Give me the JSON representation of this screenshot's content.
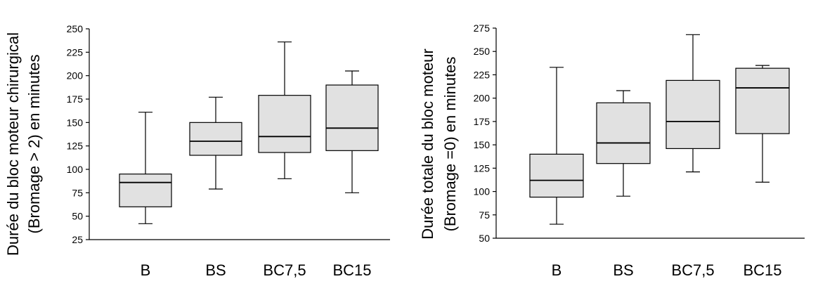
{
  "chart_data": [
    {
      "type": "boxplot",
      "ylabel_line1": "Durée du bloc moteur chirurgical",
      "ylabel_line2": "(Bromage > 2) en minutes",
      "categories": [
        "B",
        "BS",
        "BC7,5",
        "BC15"
      ],
      "ylim": [
        25,
        250
      ],
      "yticks": [
        25,
        50,
        75,
        100,
        125,
        150,
        175,
        200,
        225,
        250
      ],
      "boxes": [
        {
          "min": 42,
          "q1": 60,
          "median": 86,
          "q3": 95,
          "max": 161
        },
        {
          "min": 79,
          "q1": 115,
          "median": 130,
          "q3": 150,
          "max": 177
        },
        {
          "min": 90,
          "q1": 118,
          "median": 135,
          "q3": 179,
          "max": 236
        },
        {
          "min": 75,
          "q1": 120,
          "median": 144,
          "q3": 190,
          "max": 205
        }
      ]
    },
    {
      "type": "boxplot",
      "ylabel_line1": "Durée totale du bloc moteur",
      "ylabel_line2": "(Bromage =0) en minutes",
      "categories": [
        "B",
        "BS",
        "BC7,5",
        "BC15"
      ],
      "ylim": [
        50,
        275
      ],
      "yticks": [
        50,
        75,
        100,
        125,
        150,
        175,
        200,
        225,
        250,
        275
      ],
      "boxes": [
        {
          "min": 65,
          "q1": 94,
          "median": 112,
          "q3": 140,
          "max": 233
        },
        {
          "min": 95,
          "q1": 130,
          "median": 152,
          "q3": 195,
          "max": 208
        },
        {
          "min": 121,
          "q1": 146,
          "median": 175,
          "q3": 219,
          "max": 268
        },
        {
          "min": 110,
          "q1": 162,
          "median": 211,
          "q3": 232,
          "max": 235
        }
      ]
    }
  ]
}
